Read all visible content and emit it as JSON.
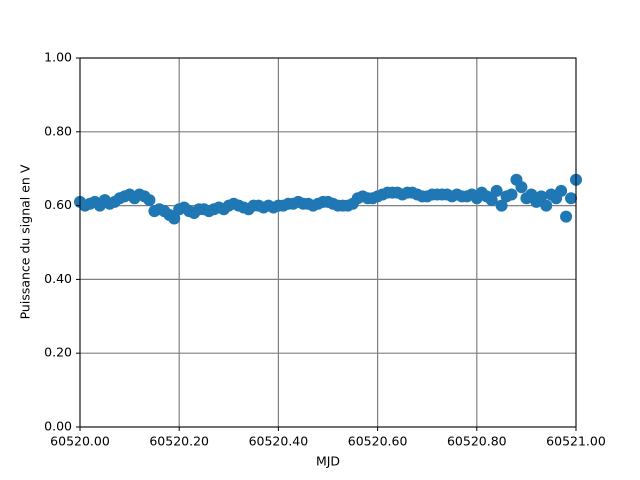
{
  "chart_data": {
    "type": "scatter",
    "xlabel": "MJD",
    "ylabel": "Puissance du signal en V",
    "color": "#1f77b4",
    "grid": true,
    "xlim": [
      60520.0,
      60521.0
    ],
    "ylim": [
      0.0,
      1.0
    ],
    "xticks": [
      {
        "value": 60520.0,
        "label": "60520.00"
      },
      {
        "value": 60520.2,
        "label": "60520.20"
      },
      {
        "value": 60520.4,
        "label": "60520.40"
      },
      {
        "value": 60520.6,
        "label": "60520.60"
      },
      {
        "value": 60520.8,
        "label": "60520.80"
      },
      {
        "value": 60521.0,
        "label": "60521.00"
      }
    ],
    "yticks": [
      {
        "value": 0.0,
        "label": "0.00"
      },
      {
        "value": 0.2,
        "label": "0.20"
      },
      {
        "value": 0.4,
        "label": "0.40"
      },
      {
        "value": 0.6,
        "label": "0.60"
      },
      {
        "value": 0.8,
        "label": "0.80"
      },
      {
        "value": 1.0,
        "label": "1.00"
      }
    ],
    "x": [
      60520.0,
      60520.01,
      60520.02,
      60520.03,
      60520.04,
      60520.05,
      60520.06,
      60520.07,
      60520.08,
      60520.09,
      60520.1,
      60520.11,
      60520.12,
      60520.13,
      60520.14,
      60520.15,
      60520.16,
      60520.17,
      60520.18,
      60520.19,
      60520.2,
      60520.21,
      60520.22,
      60520.23,
      60520.24,
      60520.25,
      60520.26,
      60520.27,
      60520.28,
      60520.29,
      60520.3,
      60520.31,
      60520.32,
      60520.33,
      60520.34,
      60520.35,
      60520.36,
      60520.37,
      60520.38,
      60520.39,
      60520.4,
      60520.41,
      60520.42,
      60520.43,
      60520.44,
      60520.45,
      60520.46,
      60520.47,
      60520.48,
      60520.49,
      60520.5,
      60520.51,
      60520.52,
      60520.53,
      60520.54,
      60520.55,
      60520.56,
      60520.57,
      60520.58,
      60520.59,
      60520.6,
      60520.61,
      60520.62,
      60520.63,
      60520.64,
      60520.65,
      60520.66,
      60520.67,
      60520.68,
      60520.69,
      60520.7,
      60520.71,
      60520.72,
      60520.73,
      60520.74,
      60520.75,
      60520.76,
      60520.77,
      60520.78,
      60520.79,
      60520.8,
      60520.81,
      60520.82,
      60520.83,
      60520.84,
      60520.85,
      60520.86,
      60520.87,
      60520.88,
      60520.89,
      60520.9,
      60520.91,
      60520.92,
      60520.93,
      60520.94,
      60520.95,
      60520.96,
      60520.97,
      60520.98,
      60520.99,
      60521.0
    ],
    "values": [
      0.61,
      0.6,
      0.605,
      0.61,
      0.6,
      0.615,
      0.605,
      0.61,
      0.62,
      0.625,
      0.63,
      0.62,
      0.63,
      0.625,
      0.615,
      0.585,
      0.59,
      0.585,
      0.575,
      0.565,
      0.59,
      0.595,
      0.585,
      0.58,
      0.59,
      0.59,
      0.585,
      0.59,
      0.595,
      0.59,
      0.6,
      0.605,
      0.6,
      0.595,
      0.59,
      0.6,
      0.6,
      0.595,
      0.6,
      0.595,
      0.6,
      0.6,
      0.605,
      0.605,
      0.61,
      0.605,
      0.605,
      0.6,
      0.605,
      0.61,
      0.61,
      0.605,
      0.6,
      0.6,
      0.6,
      0.605,
      0.62,
      0.625,
      0.62,
      0.62,
      0.625,
      0.63,
      0.635,
      0.635,
      0.635,
      0.63,
      0.635,
      0.635,
      0.63,
      0.625,
      0.625,
      0.63,
      0.63,
      0.63,
      0.63,
      0.625,
      0.63,
      0.625,
      0.625,
      0.63,
      0.62,
      0.635,
      0.625,
      0.615,
      0.64,
      0.6,
      0.625,
      0.63,
      0.67,
      0.65,
      0.62,
      0.63,
      0.61,
      0.625,
      0.6,
      0.63,
      0.62,
      0.64,
      0.57,
      0.62,
      0.67
    ]
  }
}
